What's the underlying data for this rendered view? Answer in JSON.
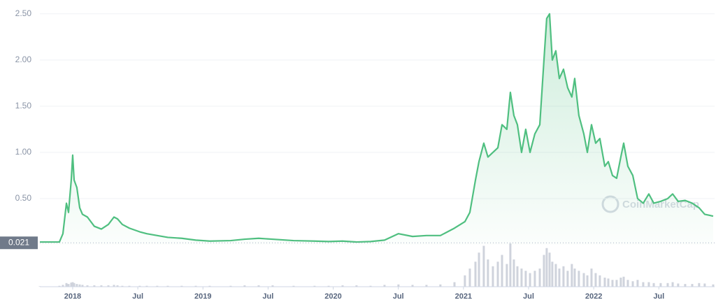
{
  "chart_data": {
    "type": "area",
    "series": [
      {
        "color": "#4fbf80",
        "x": [
          2017.748,
          2017.898,
          2017.925,
          2017.952,
          2017.968,
          2017.989,
          2018.0,
          2018.011,
          2018.032,
          2018.054,
          2018.075,
          2018.113,
          2018.166,
          2018.22,
          2018.274,
          2018.317,
          2018.344,
          2018.381,
          2018.435,
          2018.515,
          2018.569,
          2018.649,
          2018.73,
          2018.837,
          2018.945,
          2019.052,
          2019.213,
          2019.32,
          2019.428,
          2019.535,
          2019.696,
          2019.857,
          2019.965,
          2020.072,
          2020.179,
          2020.287,
          2020.394,
          2020.501,
          2020.609,
          2020.716,
          2020.823,
          2020.931,
          2021.011,
          2021.049,
          2021.092,
          2021.119,
          2021.156,
          2021.188,
          2021.226,
          2021.264,
          2021.296,
          2021.333,
          2021.36,
          2021.387,
          2021.414,
          2021.446,
          2021.478,
          2021.511,
          2021.548,
          2021.586,
          2021.618,
          2021.639,
          2021.661,
          2021.682,
          2021.709,
          2021.736,
          2021.768,
          2021.8,
          2021.832,
          2021.854,
          2021.886,
          2021.924,
          2021.951,
          2021.983,
          2022.015,
          2022.047,
          2022.085,
          2022.112,
          2022.144,
          2022.176,
          2022.208,
          2022.23,
          2022.262,
          2022.3,
          2022.337,
          2022.38,
          2022.423,
          2022.461,
          2022.514,
          2022.568,
          2022.606,
          2022.648,
          2022.702,
          2022.756,
          2022.809,
          2022.852,
          2022.917
        ],
        "values": [
          0.03,
          0.03,
          0.12,
          0.45,
          0.35,
          0.7,
          0.97,
          0.7,
          0.62,
          0.4,
          0.33,
          0.3,
          0.2,
          0.17,
          0.22,
          0.3,
          0.28,
          0.22,
          0.18,
          0.14,
          0.12,
          0.1,
          0.08,
          0.07,
          0.05,
          0.04,
          0.045,
          0.06,
          0.07,
          0.06,
          0.045,
          0.04,
          0.035,
          0.04,
          0.03,
          0.035,
          0.05,
          0.12,
          0.09,
          0.1,
          0.1,
          0.18,
          0.25,
          0.35,
          0.7,
          0.9,
          1.1,
          0.95,
          1.0,
          1.05,
          1.3,
          1.25,
          1.65,
          1.4,
          1.3,
          1.0,
          1.25,
          1.0,
          1.2,
          1.3,
          2.0,
          2.45,
          2.5,
          2.0,
          2.1,
          1.8,
          1.9,
          1.7,
          1.6,
          1.8,
          1.4,
          1.2,
          1.0,
          1.3,
          1.1,
          1.15,
          0.85,
          0.9,
          0.75,
          0.72,
          0.95,
          1.1,
          0.85,
          0.75,
          0.5,
          0.45,
          0.55,
          0.45,
          0.47,
          0.5,
          0.55,
          0.47,
          0.48,
          0.45,
          0.4,
          0.33,
          0.31
        ]
      }
    ],
    "volume": {
      "color": "#cfd3dc",
      "ylim": [
        0,
        100
      ],
      "values": [
        1,
        2,
        4,
        8,
        6,
        9,
        10,
        8,
        6,
        5,
        4,
        3,
        3,
        3,
        3,
        4,
        3,
        2,
        2,
        2,
        2,
        2,
        2,
        2,
        2,
        2,
        2,
        3,
        3,
        3,
        2,
        2,
        2,
        3,
        3,
        2,
        4,
        5,
        4,
        4,
        5,
        10,
        25,
        40,
        55,
        75,
        90,
        60,
        45,
        55,
        70,
        50,
        95,
        60,
        45,
        40,
        35,
        30,
        35,
        40,
        70,
        85,
        75,
        55,
        50,
        40,
        45,
        35,
        50,
        40,
        35,
        30,
        25,
        40,
        30,
        25,
        20,
        18,
        15,
        15,
        20,
        22,
        15,
        12,
        15,
        10,
        10,
        8,
        8,
        8,
        10,
        7,
        6,
        6,
        8,
        7,
        5
      ]
    },
    "baseline": 0.021,
    "watermark": "CoinMarketCap",
    "xlim": [
      2017.748,
      2022.928
    ],
    "xticks": [
      {
        "value": 2018,
        "label": "2018"
      },
      {
        "value": 2018.5,
        "label": "Jul"
      },
      {
        "value": 2019,
        "label": "2019"
      },
      {
        "value": 2019.5,
        "label": "Jul"
      },
      {
        "value": 2020,
        "label": "2020"
      },
      {
        "value": 2020.5,
        "label": "Jul"
      },
      {
        "value": 2021,
        "label": "2021"
      },
      {
        "value": 2021.5,
        "label": "Jul"
      },
      {
        "value": 2022,
        "label": "2022"
      },
      {
        "value": 2022.5,
        "label": "Jul"
      }
    ],
    "ylim": [
      0,
      2.65
    ],
    "yticks": [
      {
        "value": 0.5,
        "label": "0.50"
      },
      {
        "value": 1,
        "label": "1.00"
      },
      {
        "value": 1.5,
        "label": "1.50"
      },
      {
        "value": 2,
        "label": "2.00"
      },
      {
        "value": 2.5,
        "label": "2.50"
      }
    ],
    "grid": true
  }
}
